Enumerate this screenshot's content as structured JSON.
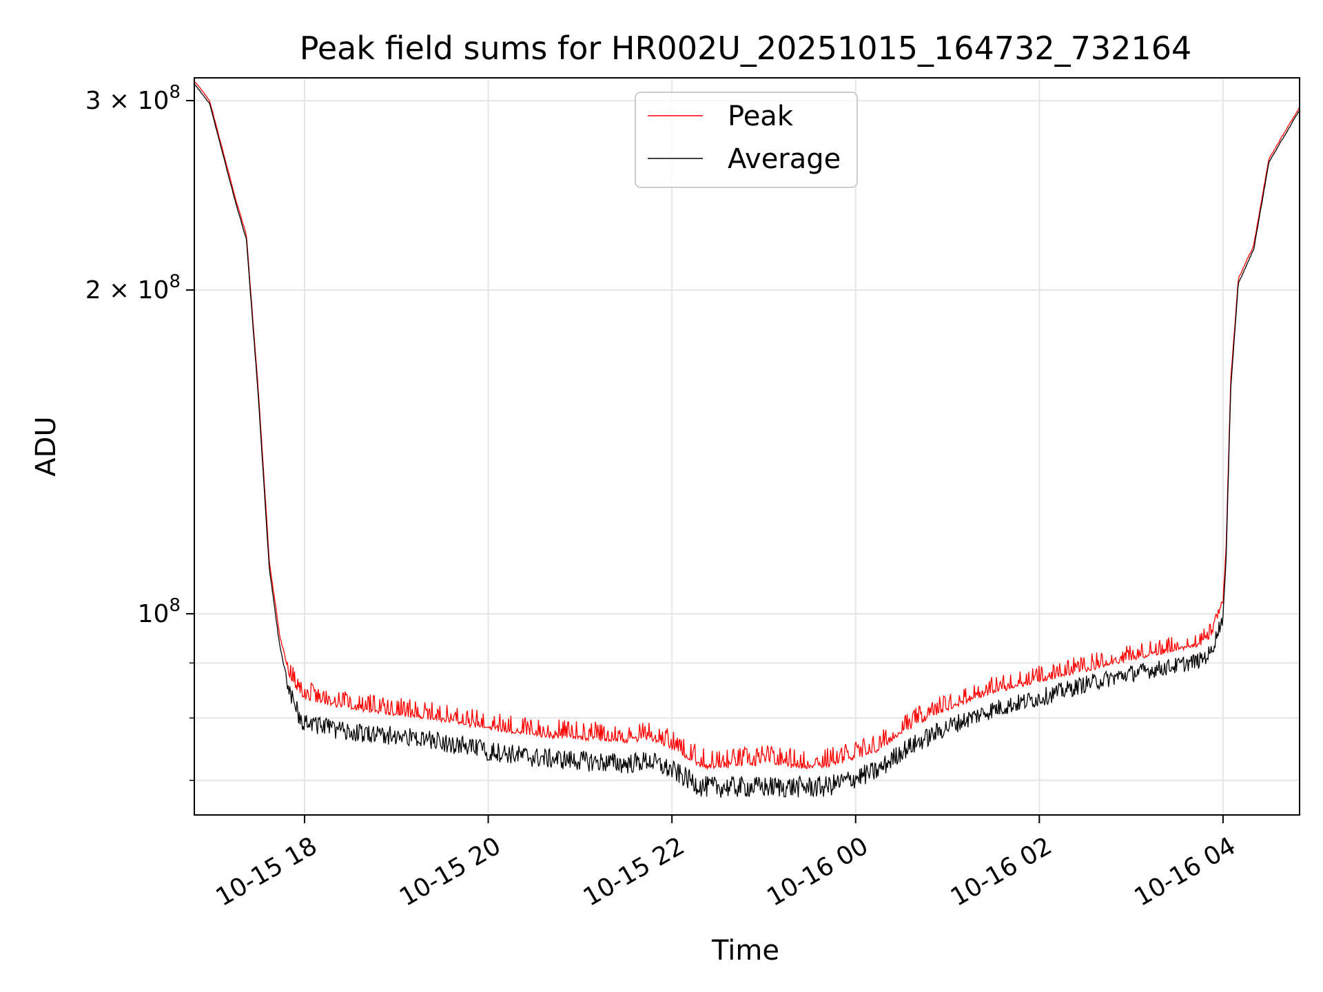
{
  "chart_data": {
    "type": "line",
    "title": "Peak field sums for HR002U_20251015_164732_732164",
    "xlabel": "Time",
    "ylabel": "ADU",
    "yscale": "log",
    "grid": true,
    "legend_position": "top-center",
    "x_range": [
      "2025-10-15 16:48",
      "2025-10-16 04:50"
    ],
    "ylim": [
      65000000,
      315000000
    ],
    "x_ticks": [
      {
        "value": "2025-10-15 18:00",
        "label": "10-15 18"
      },
      {
        "value": "2025-10-15 20:00",
        "label": "10-15 20"
      },
      {
        "value": "2025-10-15 22:00",
        "label": "10-15 22"
      },
      {
        "value": "2025-10-16 00:00",
        "label": "10-16 00"
      },
      {
        "value": "2025-10-16 02:00",
        "label": "10-16 02"
      },
      {
        "value": "2025-10-16 04:00",
        "label": "10-16 04"
      }
    ],
    "y_ticks": [
      {
        "value": 100000000,
        "mantissa": "",
        "exponent": "8"
      },
      {
        "value": 200000000,
        "mantissa": "2",
        "exponent": "8"
      },
      {
        "value": 300000000,
        "mantissa": "3",
        "exponent": "8"
      }
    ],
    "y_minor_ticks": [
      60000000,
      70000000,
      80000000,
      90000000
    ],
    "series": [
      {
        "name": "Peak",
        "color": "#ff0000",
        "x": [
          "2025-10-15 16:48",
          "2025-10-15 16:58",
          "2025-10-15 17:05",
          "2025-10-15 17:15",
          "2025-10-15 17:22",
          "2025-10-15 17:30",
          "2025-10-15 17:37",
          "2025-10-15 17:44",
          "2025-10-15 17:50",
          "2025-10-15 17:58",
          "2025-10-15 18:30",
          "2025-10-15 19:00",
          "2025-10-15 19:30",
          "2025-10-15 19:50",
          "2025-10-15 20:30",
          "2025-10-15 21:00",
          "2025-10-15 21:30",
          "2025-10-15 21:45",
          "2025-10-15 22:00",
          "2025-10-15 22:20",
          "2025-10-15 22:40",
          "2025-10-15 23:00",
          "2025-10-15 23:20",
          "2025-10-15 23:40",
          "2025-10-15 23:55",
          "2025-10-16 00:15",
          "2025-10-16 00:30",
          "2025-10-16 01:00",
          "2025-10-16 01:30",
          "2025-10-16 02:00",
          "2025-10-16 02:30",
          "2025-10-16 03:00",
          "2025-10-16 03:30",
          "2025-10-16 03:45",
          "2025-10-16 03:52",
          "2025-10-16 04:00",
          "2025-10-16 04:02",
          "2025-10-16 04:05",
          "2025-10-16 04:10",
          "2025-10-16 04:20",
          "2025-10-16 04:30",
          "2025-10-16 04:40",
          "2025-10-16 04:50"
        ],
        "y": [
          313000000,
          300000000,
          275000000,
          243000000,
          225000000,
          160000000,
          112000000,
          95000000,
          88000000,
          84000000,
          82000000,
          81000000,
          80000000,
          79000000,
          77500000,
          77000000,
          76500000,
          77000000,
          75500000,
          72500000,
          72500000,
          73000000,
          72500000,
          72500000,
          73500000,
          75000000,
          78000000,
          82000000,
          85000000,
          87000000,
          89000000,
          91000000,
          93000000,
          94000000,
          95500000,
          103000000,
          115000000,
          165000000,
          205000000,
          220000000,
          265000000,
          280000000,
          296000000
        ],
        "noise_amplitude": 2600000
      },
      {
        "name": "Average",
        "color": "#000000",
        "x": [
          "2025-10-15 16:48",
          "2025-10-15 16:58",
          "2025-10-15 17:05",
          "2025-10-15 17:15",
          "2025-10-15 17:22",
          "2025-10-15 17:30",
          "2025-10-15 17:37",
          "2025-10-15 17:44",
          "2025-10-15 17:50",
          "2025-10-15 17:58",
          "2025-10-15 18:30",
          "2025-10-15 19:00",
          "2025-10-15 19:30",
          "2025-10-15 19:50",
          "2025-10-15 20:30",
          "2025-10-15 21:00",
          "2025-10-15 21:30",
          "2025-10-15 21:45",
          "2025-10-15 22:00",
          "2025-10-15 22:20",
          "2025-10-15 22:40",
          "2025-10-15 23:00",
          "2025-10-15 23:20",
          "2025-10-15 23:40",
          "2025-10-15 23:55",
          "2025-10-16 00:15",
          "2025-10-16 00:30",
          "2025-10-16 01:00",
          "2025-10-16 01:30",
          "2025-10-16 02:00",
          "2025-10-16 02:30",
          "2025-10-16 03:00",
          "2025-10-16 03:30",
          "2025-10-16 03:45",
          "2025-10-16 03:52",
          "2025-10-16 04:00",
          "2025-10-16 04:02",
          "2025-10-16 04:05",
          "2025-10-16 04:10",
          "2025-10-16 04:20",
          "2025-10-16 04:30",
          "2025-10-16 04:40",
          "2025-10-16 04:50"
        ],
        "y": [
          311000000,
          298000000,
          273000000,
          241000000,
          223000000,
          158000000,
          110000000,
          93000000,
          85000000,
          80000000,
          78000000,
          77500000,
          76500000,
          75500000,
          74000000,
          73500000,
          73000000,
          73500000,
          72000000,
          69500000,
          69500000,
          69500000,
          69500000,
          69500000,
          70500000,
          72000000,
          75000000,
          79000000,
          82000000,
          84000000,
          86500000,
          88500000,
          90000000,
          91000000,
          92500000,
          100000000,
          112000000,
          162000000,
          203000000,
          218000000,
          263000000,
          278000000,
          294000000
        ],
        "noise_amplitude": 2000000
      }
    ]
  }
}
